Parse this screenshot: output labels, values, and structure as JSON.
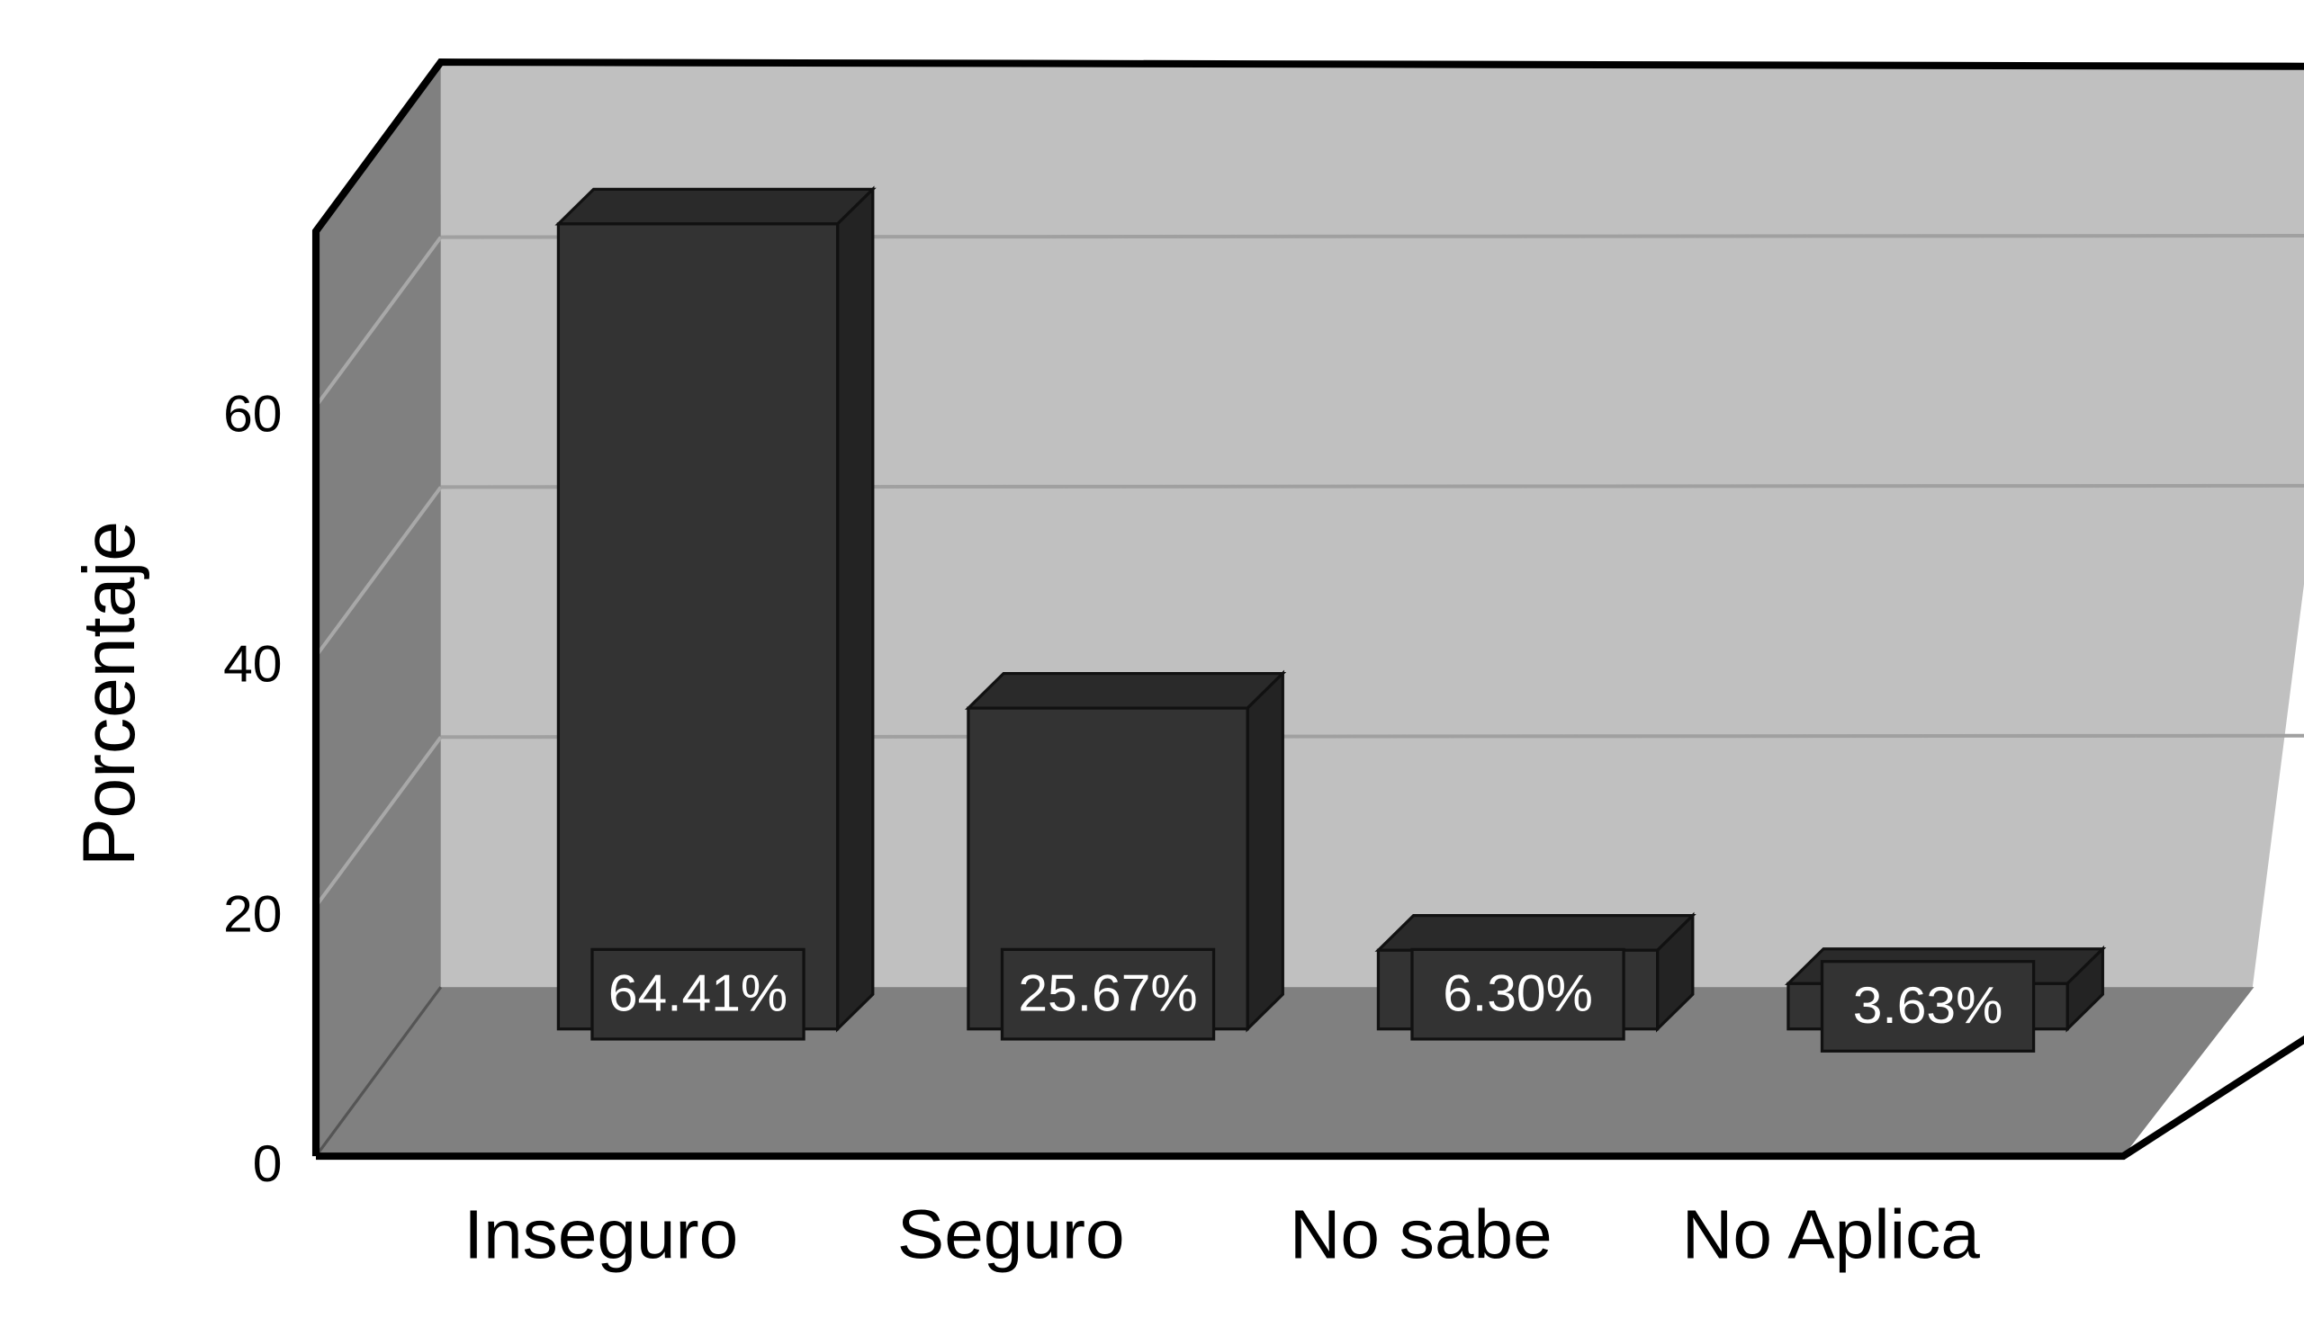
{
  "chart_data": {
    "type": "bar3d",
    "y_label": "Porcentaje",
    "categories": [
      "Inseguro",
      "Seguro",
      "No sabe",
      "No Aplica"
    ],
    "values": [
      64.41,
      25.67,
      6.3,
      3.63
    ],
    "value_labels": [
      "64.41%",
      "25.67%",
      "6.30%",
      "3.63%"
    ],
    "color": "#333333",
    "ylim": [
      0,
      74
    ],
    "yticks": [
      0,
      20,
      40,
      60
    ],
    "grid": true
  }
}
